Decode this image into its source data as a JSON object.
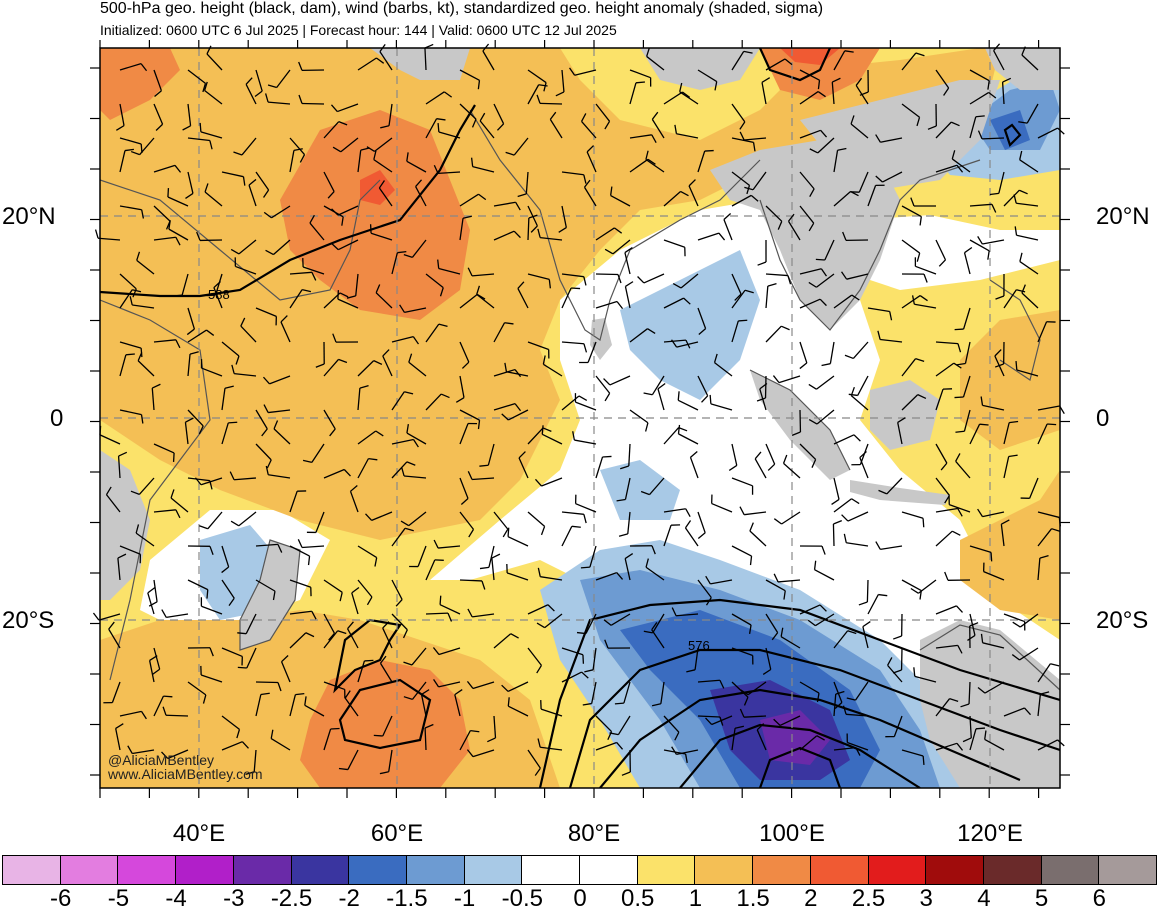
{
  "header": {
    "title": "500-hPa geo. height (black, dam), wind (barbs, kt), standardized geo. height anomaly (shaded, sigma)",
    "subtitle": "Initialized: 0600 UTC 6 Jul 2025 | Forecast hour: 144 | Valid: 0600 UTC 12 Jul 2025"
  },
  "map": {
    "lat_labels": [
      "20°N",
      "0",
      "20°S"
    ],
    "lon_labels": [
      "40°E",
      "60°E",
      "80°E",
      "100°E",
      "120°E"
    ],
    "contour_labels": [
      "588",
      "576"
    ],
    "credit": [
      "@AliciaMBentley",
      "www.AliciaMBentley.com"
    ]
  },
  "colorbar": {
    "labels": [
      "-6",
      "-5",
      "-4",
      "-3",
      "-2.5",
      "-2",
      "-1.5",
      "-1",
      "-0.5",
      "0",
      "0.5",
      "1",
      "1.5",
      "2",
      "2.5",
      "3",
      "4",
      "5",
      "6"
    ],
    "colors": [
      "#e8b4e6",
      "#e37de0",
      "#d548dc",
      "#b11fc9",
      "#6a2aa8",
      "#3a35a0",
      "#3a6cc0",
      "#6d9bd2",
      "#a8c9e6",
      "#ffffff",
      "#ffffff",
      "#fbe26a",
      "#f4bf55",
      "#f08a45",
      "#f05a33",
      "#e21c1c",
      "#a00c0c",
      "#6a2a2a",
      "#7a6e6e",
      "#a59a9a"
    ]
  },
  "colors": {
    "land_gray": "#c8c8c8",
    "light_yellow": "#fbe26a",
    "light_orange": "#f4bf55",
    "orange": "#f08a45",
    "red_orange": "#f05a33",
    "red": "#e21c1c",
    "light_blue": "#a8c9e6",
    "mid_blue": "#6d9bd2",
    "blue": "#3a6cc0",
    "dark_blue": "#3a35a0",
    "purple": "#6a2aa8"
  }
}
